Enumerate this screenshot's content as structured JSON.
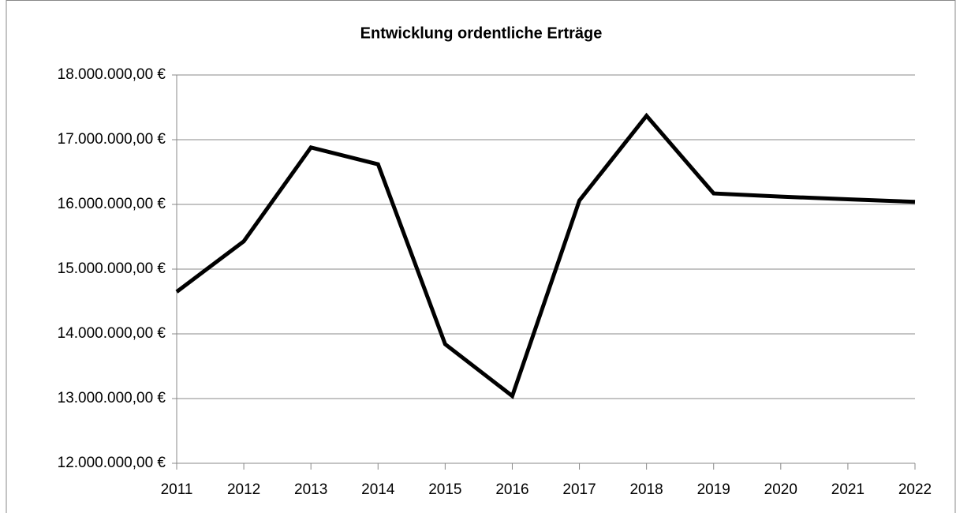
{
  "chart_data": {
    "type": "line",
    "title": "Entwicklung ordentliche Erträge",
    "categories": [
      "2011",
      "2012",
      "2013",
      "2014",
      "2015",
      "2016",
      "2017",
      "2018",
      "2019",
      "2020",
      "2021",
      "2022"
    ],
    "series": [
      {
        "name": "Ordentliche Erträge",
        "color": "#000000",
        "values": [
          14650000,
          15430000,
          16880000,
          16620000,
          13840000,
          13040000,
          16060000,
          17370000,
          16170000,
          16120000,
          16080000,
          16040000
        ]
      }
    ],
    "ylim": [
      12000000,
      18000000
    ],
    "yticks": [
      {
        "value": 12000000,
        "label": "12.000.000,00 €"
      },
      {
        "value": 13000000,
        "label": "13.000.000,00 €"
      },
      {
        "value": 14000000,
        "label": "14.000.000,00 €"
      },
      {
        "value": 15000000,
        "label": "15.000.000,00 €"
      },
      {
        "value": 16000000,
        "label": "16.000.000,00 €"
      },
      {
        "value": 17000000,
        "label": "17.000.000,00 €"
      },
      {
        "value": 18000000,
        "label": "18.000.000,00 €"
      }
    ],
    "grid": true
  }
}
